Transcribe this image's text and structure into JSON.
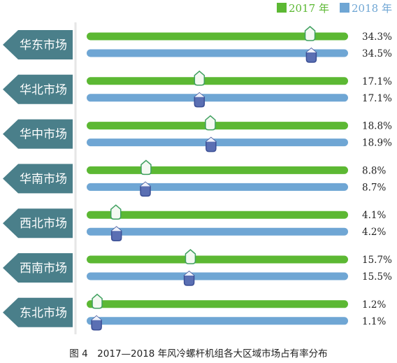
{
  "caption": "图 4　2017—2018 年风冷螺杆机组各大区域市场占有率分布",
  "chart_data": {
    "type": "bar",
    "orientation": "horizontal",
    "categories": [
      "华东市场",
      "华北市场",
      "华中市场",
      "华南市场",
      "西北市场",
      "西南市场",
      "东北市场"
    ],
    "series": [
      {
        "name": "2017 年",
        "color": "#5cb833",
        "values": [
          34.3,
          17.1,
          18.8,
          8.8,
          4.1,
          15.7,
          1.2
        ],
        "labels": [
          "34.3%",
          "17.1%",
          "18.8%",
          "8.8%",
          "4.1%",
          "15.7%",
          "1.2%"
        ]
      },
      {
        "name": "2018 年",
        "color": "#6fa6d4",
        "values": [
          34.5,
          17.1,
          18.9,
          8.7,
          4.2,
          15.5,
          1.1
        ],
        "labels": [
          "34.5%",
          "17.1%",
          "18.9%",
          "8.7%",
          "4.2%",
          "15.5%",
          "1.1%"
        ]
      }
    ],
    "xlim": [
      0,
      40
    ],
    "legend_position": "top-right",
    "grid": false
  },
  "colors": {
    "category_tag": "#4a7f8a",
    "marker_2017": "#3fa05f",
    "marker_2018": "#5a6fb3",
    "legend_2017_text": "#5cb833",
    "legend_2018_text": "#6fa6d4"
  }
}
